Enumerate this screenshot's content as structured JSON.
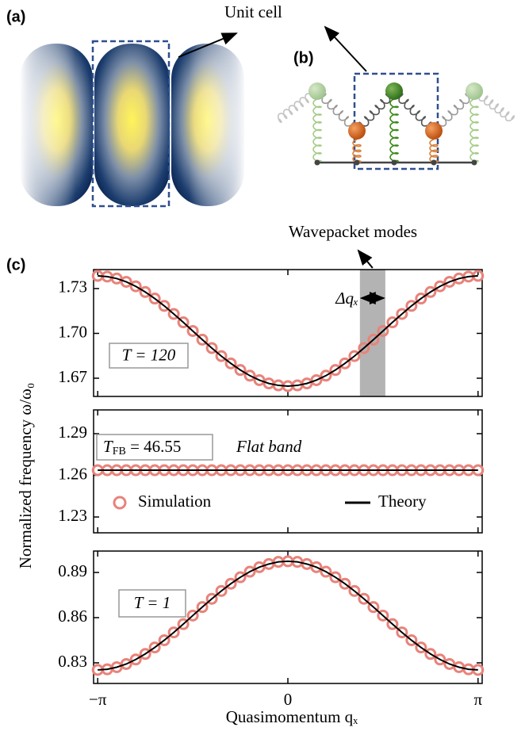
{
  "panel_labels": {
    "a": "(a)",
    "b": "(b)",
    "c": "(c)"
  },
  "unit_cell": "Unit cell",
  "chart_data": [
    {
      "type": "line",
      "xlim": [
        -3.21,
        3.21
      ],
      "ylim": [
        1.6578,
        1.7427
      ],
      "xticks": [
        -3.1416,
        0,
        3.1416
      ],
      "yticks": [
        1.73,
        {
          "value": 1.7,
          "label": "1.70"
        },
        1.67
      ],
      "x": [
        -3.1416,
        -2.9845,
        -2.8274,
        -2.6704,
        -2.5133,
        -2.3562,
        -2.1991,
        -2.042,
        -1.885,
        -1.7279,
        -1.5708,
        -1.4137,
        -1.2566,
        -1.0996,
        -0.9425,
        -0.7854,
        -0.6283,
        -0.4712,
        -0.3142,
        -0.1571,
        0,
        0.1571,
        0.3142,
        0.4712,
        0.6283,
        0.7854,
        0.9425,
        1.0996,
        1.2566,
        1.4137,
        1.5708,
        1.7279,
        1.885,
        2.042,
        2.1991,
        2.3562,
        2.5133,
        2.6704,
        2.8274,
        2.9845,
        3.1416
      ],
      "series": [
        {
          "style": "markers",
          "color": "#e8837a",
          "values": [
            1.7385,
            1.738,
            1.7367,
            1.7345,
            1.7315,
            1.7277,
            1.7233,
            1.7184,
            1.713,
            1.7074,
            1.7016,
            1.6958,
            1.6902,
            1.6848,
            1.6799,
            1.6755,
            1.6717,
            1.6687,
            1.6665,
            1.6652,
            1.6647,
            1.6652,
            1.6665,
            1.6687,
            1.6717,
            1.6755,
            1.6799,
            1.6848,
            1.6902,
            1.6958,
            1.7016,
            1.7074,
            1.713,
            1.7184,
            1.7233,
            1.7277,
            1.7315,
            1.7345,
            1.7367,
            1.738,
            1.7385
          ]
        },
        {
          "style": "line",
          "color": "#000000",
          "values": [
            1.7385,
            1.738,
            1.7367,
            1.7345,
            1.7315,
            1.7277,
            1.7233,
            1.7184,
            1.713,
            1.7074,
            1.7016,
            1.6958,
            1.6902,
            1.6848,
            1.6799,
            1.6755,
            1.6717,
            1.6687,
            1.6665,
            1.6652,
            1.6647,
            1.6652,
            1.6665,
            1.6687,
            1.6717,
            1.6755,
            1.6799,
            1.6848,
            1.6902,
            1.6958,
            1.7016,
            1.7074,
            1.713,
            1.7184,
            1.7233,
            1.7277,
            1.7315,
            1.7345,
            1.7367,
            1.738,
            1.7385
          ]
        }
      ],
      "annotation": "T = 120",
      "shaded_x": [
        1.19,
        1.61
      ],
      "band_title": "Wavepacket modes",
      "band_label": "Δqₓ"
    },
    {
      "type": "line",
      "xlim": [
        -3.21,
        3.21
      ],
      "ylim": [
        1.2186,
        1.3071
      ],
      "xticks": [
        -3.1416,
        0,
        3.1416
      ],
      "yticks": [
        1.29,
        1.26,
        1.23
      ],
      "ylabel": "Normalized frequency ω/ω₀",
      "x": [
        -3.1416,
        -2.9845,
        -2.8274,
        -2.6704,
        -2.5133,
        -2.3562,
        -2.1991,
        -2.042,
        -1.885,
        -1.7279,
        -1.5708,
        -1.4137,
        -1.2566,
        -1.0996,
        -0.9425,
        -0.7854,
        -0.6283,
        -0.4712,
        -0.3142,
        -0.1571,
        0,
        0.1571,
        0.3142,
        0.4712,
        0.6283,
        0.7854,
        0.9425,
        1.0996,
        1.2566,
        1.4137,
        1.5708,
        1.7279,
        1.885,
        2.042,
        2.1991,
        2.3562,
        2.5133,
        2.6704,
        2.8274,
        2.9845,
        3.1416
      ],
      "series": [
        {
          "name": "Simulation",
          "style": "markers",
          "color": "#e8837a",
          "values": [
            1.2637,
            1.2637,
            1.2637,
            1.2637,
            1.2637,
            1.2637,
            1.2637,
            1.2637,
            1.2637,
            1.2637,
            1.2637,
            1.2637,
            1.2637,
            1.2637,
            1.2637,
            1.2637,
            1.2637,
            1.2637,
            1.2637,
            1.2637,
            1.2637,
            1.2637,
            1.2637,
            1.2637,
            1.2637,
            1.2637,
            1.2637,
            1.2637,
            1.2637,
            1.2637,
            1.2637,
            1.2637,
            1.2637,
            1.2637,
            1.2637,
            1.2637,
            1.2637,
            1.2637,
            1.2637,
            1.2637,
            1.2637
          ]
        },
        {
          "name": "Theory",
          "style": "line",
          "color": "#000000",
          "values": [
            1.2637,
            1.2637,
            1.2637,
            1.2637,
            1.2637,
            1.2637,
            1.2637,
            1.2637,
            1.2637,
            1.2637,
            1.2637,
            1.2637,
            1.2637,
            1.2637,
            1.2637,
            1.2637,
            1.2637,
            1.2637,
            1.2637,
            1.2637,
            1.2637,
            1.2637,
            1.2637,
            1.2637,
            1.2637,
            1.2637,
            1.2637,
            1.2637,
            1.2637,
            1.2637,
            1.2637,
            1.2637,
            1.2637,
            1.2637,
            1.2637,
            1.2637,
            1.2637,
            1.2637,
            1.2637,
            1.2637,
            1.2637
          ]
        }
      ],
      "legend": "lower",
      "annotation": {
        "main": "T",
        "sub": "FB",
        "eq": " = 46.55"
      },
      "note": "Flat band"
    },
    {
      "type": "line",
      "xlim": [
        -3.21,
        3.21
      ],
      "ylim": [
        0.8163,
        0.9042
      ],
      "xticks": [
        {
          "value": -3.1416,
          "label": "−π"
        },
        0,
        {
          "value": 3.1416,
          "label": "π"
        }
      ],
      "yticks": [
        0.89,
        0.86,
        0.83
      ],
      "xlabel": "Quasimomentum qₓ",
      "x": [
        -3.1416,
        -2.9845,
        -2.8274,
        -2.6704,
        -2.5133,
        -2.3562,
        -2.1991,
        -2.042,
        -1.885,
        -1.7279,
        -1.5708,
        -1.4137,
        -1.2566,
        -1.0996,
        -0.9425,
        -0.7854,
        -0.6283,
        -0.4712,
        -0.3142,
        -0.1571,
        0,
        0.1571,
        0.3142,
        0.4712,
        0.6283,
        0.7854,
        0.9425,
        1.0996,
        1.2566,
        1.4137,
        1.5708,
        1.7279,
        1.885,
        2.042,
        2.1991,
        2.3562,
        2.5133,
        2.6704,
        2.8274,
        2.9845,
        3.1416
      ],
      "series": [
        {
          "style": "markers",
          "color": "#e8837a",
          "values": [
            0.8253,
            0.8257,
            0.8271,
            0.8292,
            0.8322,
            0.8359,
            0.8402,
            0.845,
            0.8502,
            0.8557,
            0.8614,
            0.867,
            0.8725,
            0.8777,
            0.8825,
            0.8868,
            0.8905,
            0.8935,
            0.8956,
            0.897,
            0.8974,
            0.897,
            0.8956,
            0.8935,
            0.8905,
            0.8868,
            0.8825,
            0.8777,
            0.8725,
            0.867,
            0.8614,
            0.8557,
            0.8502,
            0.845,
            0.8402,
            0.8359,
            0.8322,
            0.8292,
            0.8271,
            0.8257,
            0.8253
          ]
        },
        {
          "style": "line",
          "color": "#000000",
          "values": [
            0.8253,
            0.8257,
            0.8271,
            0.8292,
            0.8322,
            0.8359,
            0.8402,
            0.845,
            0.8502,
            0.8557,
            0.8614,
            0.867,
            0.8725,
            0.8777,
            0.8825,
            0.8868,
            0.8905,
            0.8935,
            0.8956,
            0.897,
            0.8974,
            0.897,
            0.8956,
            0.8935,
            0.8905,
            0.8868,
            0.8825,
            0.8777,
            0.8725,
            0.867,
            0.8614,
            0.8557,
            0.8502,
            0.845,
            0.8402,
            0.8359,
            0.8322,
            0.8292,
            0.8271,
            0.8257,
            0.8253
          ]
        }
      ],
      "annotation": "T = 1"
    }
  ]
}
